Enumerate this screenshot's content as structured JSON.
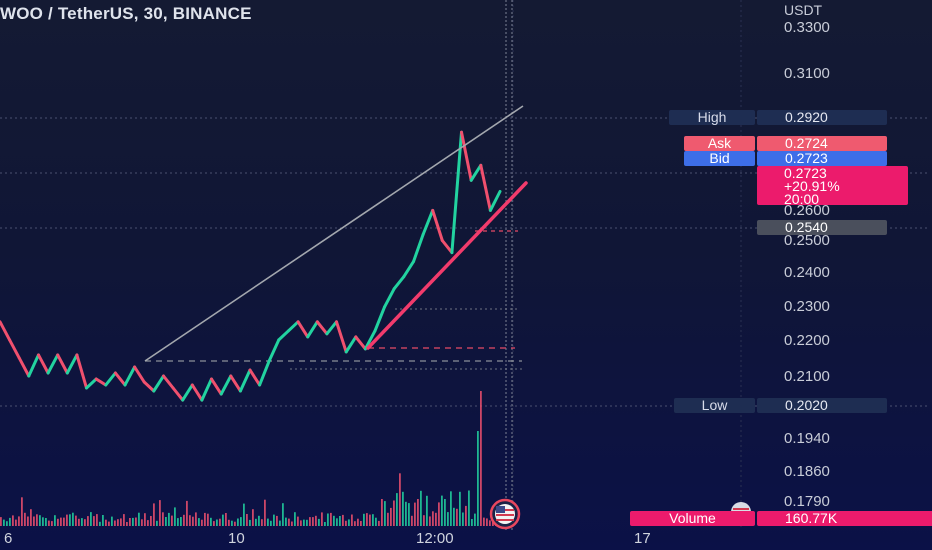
{
  "header": {
    "symbol_title": "WOO / TetherUS, 30, BINANCE",
    "currency": "USDT"
  },
  "price_tags": {
    "high_label": "High",
    "high_value": "0.2920",
    "ask_label": "Ask",
    "ask_value": "0.2724",
    "bid_label": "Bid",
    "bid_value": "0.2723",
    "last_price": "0.2723",
    "change_pct": "+20.91%",
    "countdown": "20:00",
    "level_value": "0.2540",
    "low_label": "Low",
    "low_value": "0.2020",
    "volume_label": "Volume",
    "volume_value": "160.77K"
  },
  "colors": {
    "up": "#22d3a0",
    "down": "#f0506e",
    "background": "#0f1538",
    "trendline": "#9aa0a8",
    "support_line": "#f23b6c",
    "change_box": "#ec1b6c"
  },
  "chart_data": {
    "type": "line",
    "title": "WOO / TetherUS, 30, BINANCE",
    "y_axis_ticks": [
      "0.3300",
      "0.3100",
      "0.2600",
      "0.2500",
      "0.2400",
      "0.2300",
      "0.2200",
      "0.2100",
      "0.1940",
      "0.1860",
      "0.1790"
    ],
    "x_axis_ticks": [
      "6",
      "10",
      "12:00",
      "17"
    ],
    "series": [
      {
        "values": [
          0.229,
          0.223,
          0.217,
          0.211,
          0.218,
          0.212,
          0.218,
          0.212,
          0.218,
          0.207,
          0.21,
          0.208,
          0.212,
          0.208,
          0.214,
          0.209,
          0.206,
          0.211,
          0.207,
          0.203,
          0.208,
          0.203,
          0.21,
          0.205,
          0.211,
          0.206,
          0.213,
          0.208,
          0.216,
          0.223,
          0.226,
          0.229,
          0.224,
          0.229,
          0.225,
          0.229,
          0.219,
          0.224,
          0.22,
          0.226,
          0.234,
          0.24,
          0.244,
          0.249,
          0.258,
          0.266,
          0.256,
          0.252,
          0.292,
          0.276,
          0.281,
          0.266,
          0.2723
        ]
      }
    ],
    "annotations": {
      "levels": [
        "0.2540"
      ],
      "high": "0.2920",
      "low": "0.2020",
      "volume": "160.77K"
    }
  }
}
